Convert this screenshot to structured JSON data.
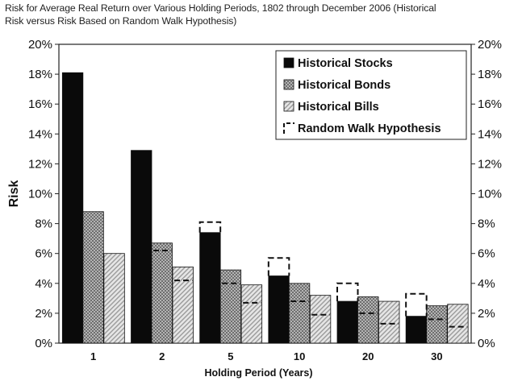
{
  "title_line1": "Risk for Average Real Return over Various Holding Periods, 1802 through December 2006 (Historical",
  "title_line2": "Risk versus Risk Based on Random Walk Hypothesis)",
  "chart_data": {
    "type": "bar",
    "title": "Risk for Average Real Return over Various Holding Periods, 1802 through December 2006 (Historical Risk versus Risk Based on Random Walk Hypothesis)",
    "xlabel": "Holding Period (Years)",
    "ylabel": "Risk",
    "ylim": [
      0,
      20
    ],
    "ytick_step": 2,
    "ytick_labels": [
      "0%",
      "2%",
      "4%",
      "6%",
      "8%",
      "10%",
      "12%",
      "14%",
      "16%",
      "18%",
      "20%"
    ],
    "secondary_y_axis": true,
    "grid": false,
    "legend_position": "top-right",
    "categories": [
      "1",
      "2",
      "5",
      "10",
      "20",
      "30"
    ],
    "series": [
      {
        "name": "Historical Stocks",
        "values": [
          18.1,
          12.9,
          7.4,
          4.5,
          2.8,
          1.8
        ],
        "color": "#0a0a0a",
        "pattern": "solid"
      },
      {
        "name": "Historical Bonds",
        "values": [
          8.8,
          6.7,
          4.9,
          4.0,
          3.1,
          2.5
        ],
        "color": "#9a9a9a",
        "pattern": "crosshatch"
      },
      {
        "name": "Historical Bills",
        "values": [
          6.0,
          5.1,
          3.9,
          3.2,
          2.8,
          2.6
        ],
        "color": "#d0d0d0",
        "pattern": "diagonal"
      },
      {
        "name": "Random Walk Hypothesis",
        "style": "dashed-marker",
        "stocks": [
          18.1,
          12.9,
          8.1,
          5.7,
          4.0,
          3.3
        ],
        "bonds": [
          8.8,
          6.2,
          4.0,
          2.8,
          2.0,
          1.6
        ],
        "bills": [
          6.0,
          4.2,
          2.7,
          1.9,
          1.3,
          1.1
        ]
      }
    ]
  }
}
